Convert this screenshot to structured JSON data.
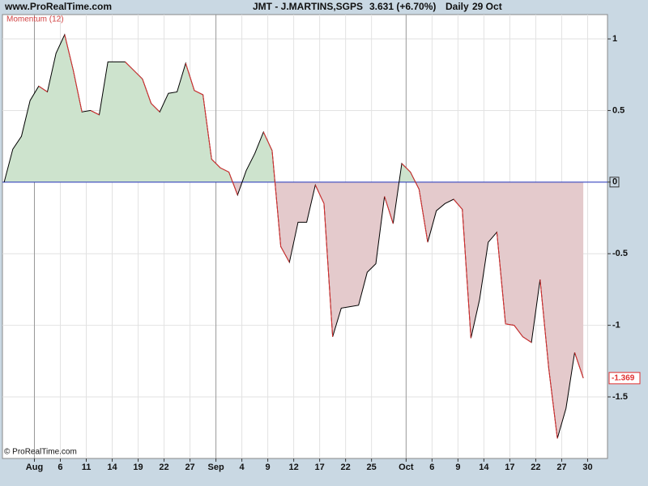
{
  "header": {
    "site": "www.ProRealTime.com",
    "instrument": "JMT - J.MARTINS,SGPS",
    "price": "3.631 (+6.70%)",
    "period": "Daily",
    "date": "29 Oct"
  },
  "chart_data": {
    "type": "line",
    "title": "Momentum (12)",
    "watermark": "© ProRealTime.com",
    "x": [
      0,
      1,
      2,
      3,
      4,
      5,
      6,
      7,
      8,
      9,
      10,
      11,
      12,
      13,
      14,
      15,
      16,
      17,
      18,
      19,
      20,
      21,
      22,
      23,
      24,
      25,
      26,
      27,
      28,
      29,
      30,
      31,
      32,
      33,
      34,
      35,
      36,
      37,
      38,
      39,
      40,
      41,
      42,
      43,
      44,
      45,
      46,
      47,
      48,
      49,
      50,
      51,
      52,
      53,
      54,
      55,
      56,
      57,
      58,
      59,
      60,
      61,
      62,
      63,
      64,
      65,
      66,
      67
    ],
    "values": [
      0.0,
      0.23,
      0.32,
      0.57,
      0.67,
      0.63,
      0.9,
      1.03,
      0.78,
      0.49,
      0.5,
      0.47,
      0.84,
      0.84,
      0.84,
      0.78,
      0.72,
      0.55,
      0.49,
      0.62,
      0.63,
      0.83,
      0.64,
      0.61,
      0.16,
      0.1,
      0.07,
      -0.09,
      0.08,
      0.2,
      0.35,
      0.22,
      -0.45,
      -0.56,
      -0.28,
      -0.28,
      -0.02,
      -0.15,
      -1.08,
      -0.88,
      -0.87,
      -0.86,
      -0.63,
      -0.57,
      -0.1,
      -0.29,
      0.13,
      0.07,
      -0.05,
      -0.42,
      -0.2,
      -0.15,
      -0.12,
      -0.19,
      -1.09,
      -0.82,
      -0.42,
      -0.35,
      -0.99,
      -1.0,
      -1.08,
      -1.12,
      -0.68,
      -1.3,
      -1.79,
      -1.58,
      -1.19,
      -1.369
    ],
    "last_value_label": "-1.369",
    "xlim": [
      -0.2,
      69.8
    ],
    "ylim": [
      -1.93,
      1.17
    ],
    "xticks": [
      {
        "value": 3.5,
        "label": "Aug"
      },
      {
        "value": 6.5,
        "label": "6"
      },
      {
        "value": 9.5,
        "label": "11"
      },
      {
        "value": 12.5,
        "label": "14"
      },
      {
        "value": 15.5,
        "label": "19"
      },
      {
        "value": 18.5,
        "label": "22"
      },
      {
        "value": 21.5,
        "label": "27"
      },
      {
        "value": 24.5,
        "label": "Sep"
      },
      {
        "value": 27.5,
        "label": "4"
      },
      {
        "value": 30.5,
        "label": "9"
      },
      {
        "value": 33.5,
        "label": "12"
      },
      {
        "value": 36.5,
        "label": "17"
      },
      {
        "value": 39.5,
        "label": "22"
      },
      {
        "value": 42.5,
        "label": "25"
      },
      {
        "value": 46.5,
        "label": "Oct"
      },
      {
        "value": 49.5,
        "label": "6"
      },
      {
        "value": 52.5,
        "label": "9"
      },
      {
        "value": 55.5,
        "label": "14"
      },
      {
        "value": 58.5,
        "label": "17"
      },
      {
        "value": 61.5,
        "label": "22"
      },
      {
        "value": 64.5,
        "label": "27"
      },
      {
        "value": 67.5,
        "label": "30"
      }
    ],
    "yticks": [
      1,
      0.5,
      0,
      -0.5,
      -1,
      -1.5
    ],
    "grid": true,
    "rise_color": "#000000",
    "fall_color": "#e03030",
    "positive_fill": "#cde3cd",
    "negative_fill": "#e4cacc",
    "zero_line_color": "#2233bb"
  }
}
